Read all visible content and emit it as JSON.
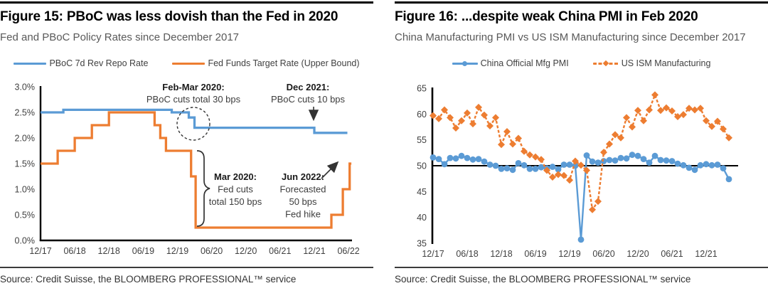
{
  "colors": {
    "blue": "#5B9BD5",
    "orange": "#ED7D31",
    "axis": "#000000",
    "annotation": "#3d3d3d"
  },
  "figure15": {
    "title": "Figure 15: PBoC was less dovish than the Fed in 2020",
    "subtitle": "Fed and PBoC Policy Rates since December 2017",
    "legend": [
      {
        "label": "PBoC 7d Rev Repo Rate",
        "color": "#5B9BD5",
        "marker": "none",
        "dash": false
      },
      {
        "label": "Fed Funds Target Rate (Upper Bound)",
        "color": "#ED7D31",
        "marker": "none",
        "dash": false
      }
    ],
    "source": "Source: Credit Suisse, the BLOOMBERG PROFESSIONAL™ service",
    "chart_data": {
      "type": "line",
      "subtype": "step",
      "x_unit": "months since Dec 2017",
      "x_ticks": [
        {
          "month": 0,
          "label": "12/17"
        },
        {
          "month": 6,
          "label": "06/18"
        },
        {
          "month": 12,
          "label": "12/18"
        },
        {
          "month": 18,
          "label": "06/19"
        },
        {
          "month": 24,
          "label": "12/19"
        },
        {
          "month": 30,
          "label": "06/20"
        },
        {
          "month": 36,
          "label": "12/20"
        },
        {
          "month": 42,
          "label": "06/21"
        },
        {
          "month": 48,
          "label": "12/21"
        },
        {
          "month": 54,
          "label": "06/22"
        }
      ],
      "ylim": [
        0,
        3
      ],
      "y_ticks": [
        {
          "value": 3.0,
          "label": "3.0%"
        },
        {
          "value": 2.5,
          "label": "2.5%"
        },
        {
          "value": 2.0,
          "label": "2.0%"
        },
        {
          "value": 1.5,
          "label": "1.5%"
        },
        {
          "value": 1.0,
          "label": "1.0%"
        },
        {
          "value": 0.5,
          "label": "0.5%"
        },
        {
          "value": 0.0,
          "label": "0.0%"
        }
      ],
      "series": [
        {
          "name": "PBoC 7d Rev Repo Rate",
          "color": "#5B9BD5",
          "steps": [
            [
              0,
              2.5
            ],
            [
              4,
              2.55
            ],
            [
              23,
              2.5
            ],
            [
              26,
              2.4
            ],
            [
              27,
              2.2
            ],
            [
              48,
              2.1
            ]
          ],
          "end_month": 53.8
        },
        {
          "name": "Fed Funds Target Rate (Upper Bound)",
          "color": "#ED7D31",
          "steps": [
            [
              0,
              1.5
            ],
            [
              3,
              1.75
            ],
            [
              6,
              2.0
            ],
            [
              9,
              2.25
            ],
            [
              12,
              2.5
            ],
            [
              20,
              2.25
            ],
            [
              21,
              2.0
            ],
            [
              22,
              1.75
            ],
            [
              26.4,
              1.25
            ],
            [
              27.2,
              0.25
            ],
            [
              51,
              0.5
            ],
            [
              53,
              1.0
            ],
            [
              54.2,
              1.5
            ]
          ],
          "end_month": 54.5
        }
      ],
      "annotations": [
        {
          "id": "feb-mar-2020",
          "lines": [
            "Feb-Mar 2020:",
            "PBoC cuts total 30 bps"
          ]
        },
        {
          "id": "dec-2021",
          "lines": [
            "Dec 2021:",
            "PBoC cuts 10 bps"
          ]
        },
        {
          "id": "mar-2020",
          "lines": [
            "Mar 2020:",
            "Fed cuts",
            "total 150 bps"
          ]
        },
        {
          "id": "jun-2022",
          "lines": [
            "Jun 2022:",
            "Forecasted",
            "50 bps",
            "Fed hike"
          ]
        }
      ]
    }
  },
  "figure16": {
    "title": "Figure 16: ...despite weak China PMI in Feb 2020",
    "subtitle": "China Manufacturing PMI vs US ISM Manufacturing since December 2017",
    "legend": [
      {
        "label": "China Official Mfg PMI",
        "color": "#5B9BD5",
        "marker": "circle",
        "dash": false
      },
      {
        "label": "US ISM Manufacturing",
        "color": "#ED7D31",
        "marker": "diamond",
        "dash": true
      }
    ],
    "source": "Source: Credit Suisse, the BLOOMBERG PROFESSIONAL™ service",
    "chart_data": {
      "type": "line",
      "x_unit": "months since Dec 2017",
      "baseline_value": 50,
      "x_ticks": [
        {
          "month": 0,
          "label": "12/17"
        },
        {
          "month": 6,
          "label": "06/18"
        },
        {
          "month": 12,
          "label": "12/18"
        },
        {
          "month": 18,
          "label": "06/19"
        },
        {
          "month": 24,
          "label": "12/19"
        },
        {
          "month": 30,
          "label": "06/20"
        },
        {
          "month": 36,
          "label": "12/20"
        },
        {
          "month": 42,
          "label": "06/21"
        },
        {
          "month": 48,
          "label": "12/21"
        }
      ],
      "ylim": [
        35,
        65
      ],
      "y_ticks": [
        {
          "value": 65,
          "label": "65"
        },
        {
          "value": 60,
          "label": "60"
        },
        {
          "value": 55,
          "label": "55"
        },
        {
          "value": 50,
          "label": "50"
        },
        {
          "value": 45,
          "label": "45"
        },
        {
          "value": 40,
          "label": "40"
        },
        {
          "value": 35,
          "label": "35"
        }
      ],
      "series": [
        {
          "name": "China Official Mfg PMI",
          "color": "#5B9BD5",
          "marker": "circle",
          "dash": false,
          "values": [
            51.6,
            51.3,
            50.3,
            51.5,
            51.4,
            51.9,
            51.5,
            51.2,
            51.3,
            50.8,
            50.2,
            50.0,
            49.4,
            49.5,
            49.2,
            50.5,
            50.1,
            49.4,
            49.4,
            49.7,
            49.5,
            49.8,
            49.3,
            50.2,
            50.2,
            50.0,
            35.7,
            52.0,
            50.8,
            50.6,
            50.9,
            51.1,
            51.0,
            51.5,
            51.4,
            52.1,
            51.9,
            51.3,
            50.6,
            51.9,
            51.1,
            51.0,
            50.9,
            50.4,
            50.1,
            49.6,
            49.2,
            50.1,
            50.3,
            50.1,
            50.2,
            49.5,
            47.4
          ]
        },
        {
          "name": "US ISM Manufacturing",
          "color": "#ED7D31",
          "marker": "diamond",
          "dash": true,
          "values": [
            59.7,
            59.1,
            60.8,
            59.3,
            57.3,
            58.7,
            60.2,
            58.1,
            61.3,
            59.8,
            57.7,
            59.3,
            54.1,
            56.6,
            54.2,
            55.3,
            52.8,
            52.1,
            51.7,
            51.2,
            49.1,
            47.8,
            48.3,
            48.1,
            47.2,
            50.9,
            50.1,
            49.1,
            41.5,
            43.1,
            52.6,
            54.2,
            56.0,
            55.4,
            59.3,
            57.5,
            60.7,
            58.7,
            60.8,
            63.7,
            60.7,
            61.2,
            60.6,
            59.5,
            59.9,
            61.1,
            60.8,
            61.1,
            58.7,
            57.6,
            58.6,
            57.1,
            55.4
          ]
        }
      ]
    }
  }
}
